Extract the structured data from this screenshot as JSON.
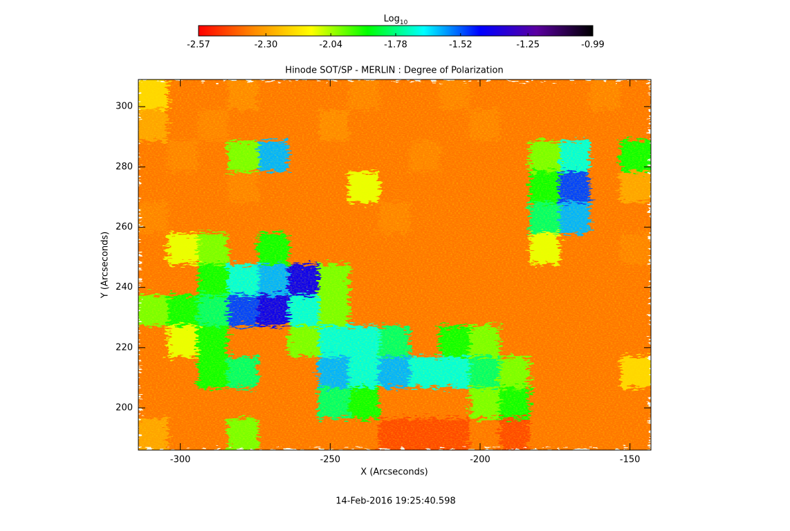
{
  "chart_data": {
    "type": "heatmap",
    "title": "Hinode SOT/SP - MERLIN : Degree of Polarization",
    "x_label": "X (Arcseconds)",
    "y_label": "Y (Arcseconds)",
    "footer": "14-Feb-2016 19:25:40.598",
    "colorbar_label": {
      "base": "Log",
      "sub": "10"
    },
    "colormap": [
      "#ff0000",
      "#ff8c00",
      "#ffff00",
      "#00ff00",
      "#00ffff",
      "#0000ff",
      "#5a00a0",
      "#000000"
    ],
    "zlim": [
      -2.57,
      -0.99
    ],
    "zticks": [
      -2.57,
      {
        "value": -2.3,
        "label": "-2.30"
      },
      -2.04,
      -1.78,
      -1.52,
      -1.25,
      -0.99
    ],
    "xlim": [
      -314,
      -143
    ],
    "xticks": [
      -300,
      -250,
      -200,
      -150
    ],
    "ylim": [
      186,
      309
    ],
    "yticks": [
      200,
      220,
      240,
      260,
      280,
      300
    ],
    "z": [
      [
        -2.2,
        -2.38,
        -2.38,
        -2.35,
        -2.38,
        -2.38,
        -2.38,
        -2.36,
        -2.38,
        -2.38,
        -2.36,
        -2.38,
        -2.38,
        -2.38,
        -2.38,
        -2.36,
        -2.38
      ],
      [
        -2.3,
        -2.38,
        -2.36,
        -2.38,
        -2.38,
        -2.38,
        -2.35,
        -2.38,
        -2.38,
        -2.38,
        -2.38,
        -2.36,
        -2.38,
        -2.38,
        -2.38,
        -2.38,
        -2.38
      ],
      [
        -2.38,
        -2.36,
        -2.38,
        -2.0,
        -1.6,
        -2.38,
        -2.38,
        -2.38,
        -2.38,
        -2.36,
        -2.38,
        -2.38,
        -2.38,
        -2.0,
        -1.7,
        -2.38,
        -1.9
      ],
      [
        -2.38,
        -2.38,
        -2.38,
        -2.36,
        -2.38,
        -2.38,
        -2.38,
        -2.1,
        -2.38,
        -2.38,
        -2.38,
        -2.38,
        -2.38,
        -1.9,
        -1.5,
        -2.38,
        -2.3
      ],
      [
        -2.36,
        -2.38,
        -2.38,
        -2.38,
        -2.38,
        -2.38,
        -2.38,
        -2.38,
        -2.36,
        -2.38,
        -2.38,
        -2.38,
        -2.38,
        -1.8,
        -1.6,
        -2.38,
        -2.38
      ],
      [
        -2.38,
        -2.1,
        -2.0,
        -2.38,
        -1.9,
        -2.38,
        -2.38,
        -2.38,
        -2.38,
        -2.38,
        -2.38,
        -2.38,
        -2.38,
        -2.1,
        -2.38,
        -2.38,
        -2.36
      ],
      [
        -2.38,
        -2.38,
        -1.9,
        -1.7,
        -1.6,
        -1.4,
        -2.0,
        -2.38,
        -2.38,
        -2.38,
        -2.38,
        -2.38,
        -2.38,
        -2.38,
        -2.38,
        -2.38,
        -2.38
      ],
      [
        -2.0,
        -1.9,
        -1.8,
        -1.5,
        -1.4,
        -1.7,
        -2.0,
        -2.38,
        -2.38,
        -2.38,
        -2.38,
        -2.38,
        -2.38,
        -2.38,
        -2.38,
        -2.38,
        -2.38
      ],
      [
        -2.38,
        -2.1,
        -1.9,
        -2.38,
        -2.38,
        -2.0,
        -1.7,
        -1.7,
        -1.8,
        -2.38,
        -1.9,
        -2.0,
        -2.38,
        -2.38,
        -2.38,
        -2.38,
        -2.38
      ],
      [
        -2.38,
        -2.38,
        -1.9,
        -1.8,
        -2.38,
        -2.38,
        -1.6,
        -1.7,
        -1.6,
        -1.7,
        -1.7,
        -1.8,
        -2.0,
        -2.38,
        -2.38,
        -2.38,
        -2.2
      ],
      [
        -2.38,
        -2.38,
        -2.38,
        -2.38,
        -2.38,
        -2.38,
        -1.8,
        -1.9,
        -2.38,
        -2.38,
        -2.38,
        -2.0,
        -1.9,
        -2.38,
        -2.38,
        -2.38,
        -2.38
      ],
      [
        -2.3,
        -2.38,
        -2.38,
        -2.0,
        -2.38,
        -2.38,
        -2.38,
        -2.38,
        -2.45,
        -2.45,
        -2.45,
        -2.38,
        -2.45,
        -2.38,
        -2.38,
        -2.38,
        -2.38
      ]
    ]
  }
}
